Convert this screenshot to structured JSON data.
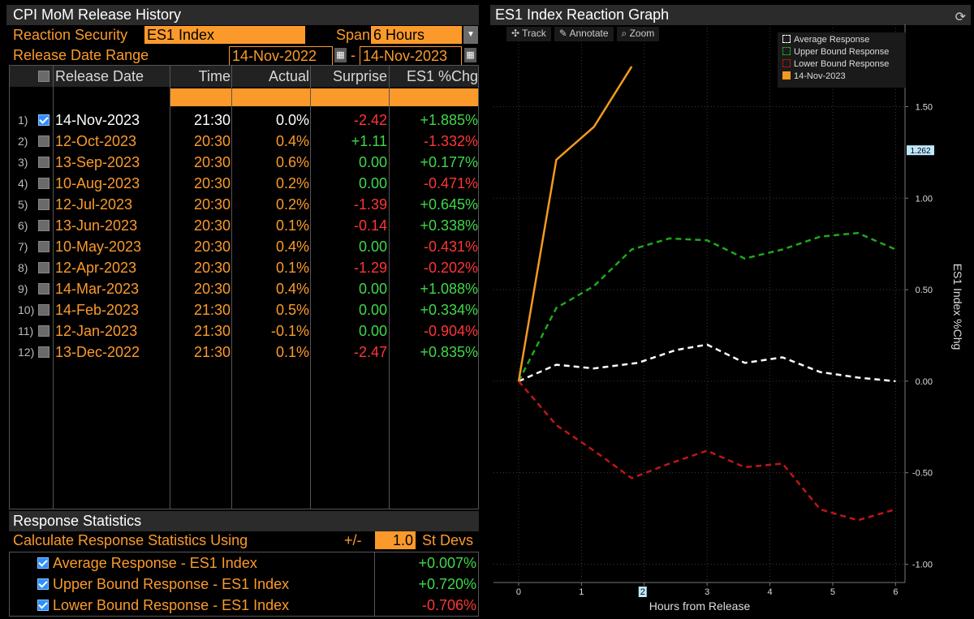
{
  "left_panel": {
    "title": "CPI MoM Release History",
    "reaction_security_label": "Reaction Security",
    "reaction_security_value": "ES1 Index",
    "span_label": "Span",
    "span_value": "6 Hours",
    "date_range_label": "Release Date Range",
    "date_from": "14-Nov-2022",
    "date_to": "14-Nov-2023",
    "date_sep": "-",
    "columns": [
      "Release Date",
      "Time",
      "Actual",
      "Surprise",
      "ES1 %Chg"
    ],
    "rows": [
      {
        "idx": "1)",
        "checked": true,
        "date": "14-Nov-2023",
        "time": "21:30",
        "actual": "0.0%",
        "surprise": "-2.42",
        "surprise_sign": "neg",
        "chg": "+1.885%",
        "chg_sign": "pos"
      },
      {
        "idx": "2)",
        "checked": false,
        "date": "12-Oct-2023",
        "time": "20:30",
        "actual": "0.4%",
        "surprise": "+1.11",
        "surprise_sign": "pos",
        "chg": "-1.332%",
        "chg_sign": "neg"
      },
      {
        "idx": "3)",
        "checked": false,
        "date": "13-Sep-2023",
        "time": "20:30",
        "actual": "0.6%",
        "surprise": "0.00",
        "surprise_sign": "zero",
        "chg": "+0.177%",
        "chg_sign": "pos"
      },
      {
        "idx": "4)",
        "checked": false,
        "date": "10-Aug-2023",
        "time": "20:30",
        "actual": "0.2%",
        "surprise": "0.00",
        "surprise_sign": "zero",
        "chg": "-0.471%",
        "chg_sign": "neg"
      },
      {
        "idx": "5)",
        "checked": false,
        "date": "12-Jul-2023",
        "time": "20:30",
        "actual": "0.2%",
        "surprise": "-1.39",
        "surprise_sign": "neg",
        "chg": "+0.645%",
        "chg_sign": "pos"
      },
      {
        "idx": "6)",
        "checked": false,
        "date": "13-Jun-2023",
        "time": "20:30",
        "actual": "0.1%",
        "surprise": "-0.14",
        "surprise_sign": "neg",
        "chg": "+0.338%",
        "chg_sign": "pos"
      },
      {
        "idx": "7)",
        "checked": false,
        "date": "10-May-2023",
        "time": "20:30",
        "actual": "0.4%",
        "surprise": "0.00",
        "surprise_sign": "zero",
        "chg": "-0.431%",
        "chg_sign": "neg"
      },
      {
        "idx": "8)",
        "checked": false,
        "date": "12-Apr-2023",
        "time": "20:30",
        "actual": "0.1%",
        "surprise": "-1.29",
        "surprise_sign": "neg",
        "chg": "-0.202%",
        "chg_sign": "neg"
      },
      {
        "idx": "9)",
        "checked": false,
        "date": "14-Mar-2023",
        "time": "20:30",
        "actual": "0.4%",
        "surprise": "0.00",
        "surprise_sign": "zero",
        "chg": "+1.088%",
        "chg_sign": "pos"
      },
      {
        "idx": "10)",
        "checked": false,
        "date": "14-Feb-2023",
        "time": "21:30",
        "actual": "0.5%",
        "surprise": "0.00",
        "surprise_sign": "zero",
        "chg": "+0.334%",
        "chg_sign": "pos"
      },
      {
        "idx": "11)",
        "checked": false,
        "date": "12-Jan-2023",
        "time": "21:30",
        "actual": "-0.1%",
        "surprise": "0.00",
        "surprise_sign": "zero",
        "chg": "-0.904%",
        "chg_sign": "neg"
      },
      {
        "idx": "12)",
        "checked": false,
        "date": "13-Dec-2022",
        "time": "21:30",
        "actual": "0.1%",
        "surprise": "-2.47",
        "surprise_sign": "neg",
        "chg": "+0.835%",
        "chg_sign": "pos"
      }
    ],
    "stats_title": "Response Statistics",
    "calc_label": "Calculate Response Statistics Using",
    "pm_label": "+/-",
    "stdev_value": "1.0",
    "stdev_label": "St Devs",
    "stats": [
      {
        "label": "Average Response - ES1 Index",
        "value": "+0.007%",
        "sign": "pos"
      },
      {
        "label": "Upper Bound Response - ES1 Index",
        "value": "+0.720%",
        "sign": "pos"
      },
      {
        "label": "Lower Bound Response - ES1 Index",
        "value": "-0.706%",
        "sign": "neg"
      }
    ]
  },
  "right_panel": {
    "title": "ES1 Index Reaction Graph",
    "toolbar": [
      "Track",
      "Annotate",
      "Zoom"
    ],
    "current_value_label": "1.262",
    "x_marker_label": "2"
  },
  "colors": {
    "orange": "#fb9a2b",
    "green": "#3fd84a",
    "red": "#ff3535",
    "avg_line": "#ffffff",
    "upper_line": "#1ea81e",
    "lower_line": "#c01616",
    "release_line": "#f29a1f"
  },
  "chart_data": {
    "type": "line",
    "xlabel": "Hours from Release",
    "ylabel": "ES1 Index %Chg",
    "xlim": [
      -0.4,
      6.15
    ],
    "ylim": [
      -1.1,
      1.95
    ],
    "x_ticks": [
      "0",
      "1",
      "2",
      "3",
      "4",
      "5",
      "6"
    ],
    "y_ticks": [
      "1.50",
      "1.00",
      "0.50",
      "0.00",
      "-0.50",
      "-1.00"
    ],
    "y_tick_values": [
      1.5,
      1.0,
      0.5,
      0.0,
      -0.5,
      -1.0
    ],
    "grid": true,
    "legend_position": "top-right",
    "series": [
      {
        "name": "Average Response",
        "style": "dashed",
        "color": "#ffffff",
        "x": [
          0,
          0.6,
          1.2,
          1.9,
          2.5,
          3.0,
          3.6,
          4.2,
          4.8,
          5.4,
          6.0
        ],
        "y": [
          0.0,
          0.09,
          0.07,
          0.1,
          0.17,
          0.2,
          0.1,
          0.13,
          0.05,
          0.02,
          0.0
        ]
      },
      {
        "name": "Upper Bound Response",
        "style": "dashed",
        "color": "#1ea81e",
        "x": [
          0,
          0.6,
          1.2,
          1.8,
          2.4,
          3.0,
          3.6,
          4.2,
          4.8,
          5.4,
          6.0
        ],
        "y": [
          0.0,
          0.4,
          0.52,
          0.72,
          0.78,
          0.77,
          0.67,
          0.72,
          0.79,
          0.81,
          0.72
        ]
      },
      {
        "name": "Lower Bound Response",
        "style": "dashed",
        "color": "#c01616",
        "x": [
          0,
          0.6,
          1.2,
          1.8,
          2.4,
          3.0,
          3.6,
          4.2,
          4.8,
          5.4,
          6.0
        ],
        "y": [
          0.0,
          -0.24,
          -0.38,
          -0.53,
          -0.45,
          -0.38,
          -0.47,
          -0.45,
          -0.7,
          -0.76,
          -0.7
        ]
      },
      {
        "name": "14-Nov-2023",
        "style": "solid",
        "color": "#f29a1f",
        "x": [
          0,
          0.6,
          1.2,
          1.8
        ],
        "y": [
          0.0,
          1.21,
          1.39,
          1.72
        ]
      }
    ]
  }
}
